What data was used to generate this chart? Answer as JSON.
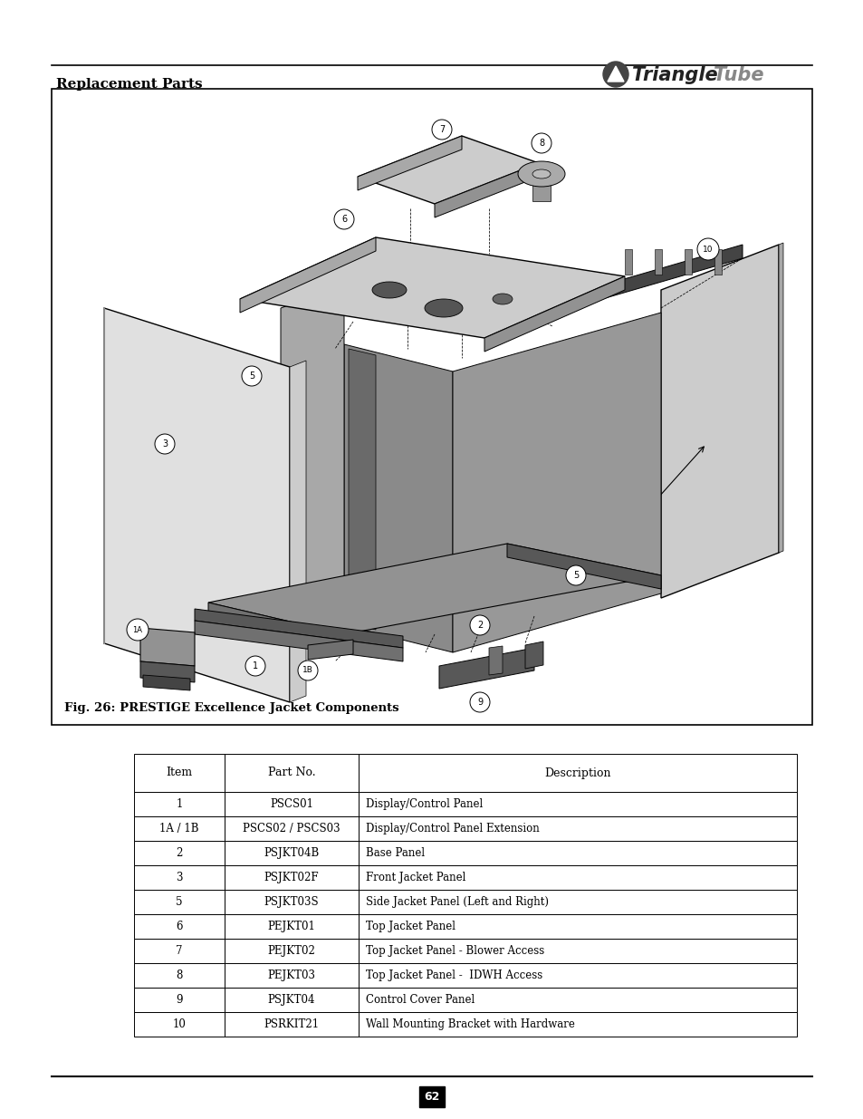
{
  "page_bg": "#ffffff",
  "header_text": "Replacement Parts",
  "page_number": "62",
  "fig_caption": "Fig. 26: PRESTIGE Excellence Jacket Components",
  "table": {
    "headers": [
      "Item",
      "Part No.",
      "Description"
    ],
    "rows": [
      [
        "1",
        "PSCS01",
        "Display/Control Panel"
      ],
      [
        "1A / 1B",
        "PSCS02 / PSCS03",
        "Display/Control Panel Extension"
      ],
      [
        "2",
        "PSJKT04B",
        "Base Panel"
      ],
      [
        "3",
        "PSJKT02F",
        "Front Jacket Panel"
      ],
      [
        "5",
        "PSJKT03S",
        "Side Jacket Panel (Left and Right)"
      ],
      [
        "6",
        "PEJKT01",
        "Top Jacket Panel"
      ],
      [
        "7",
        "PEJKT02",
        "Top Jacket Panel - Blower Access"
      ],
      [
        "8",
        "PEJKT03",
        "Top Jacket Panel -  IDWH Access"
      ],
      [
        "9",
        "PSJKT04",
        "Control Cover Panel"
      ],
      [
        "10",
        "PSRKIT21",
        "Wall Mounting Bracket with Hardware"
      ]
    ]
  }
}
